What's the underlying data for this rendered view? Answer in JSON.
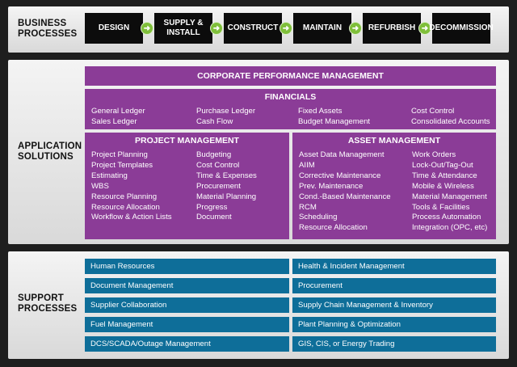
{
  "business": {
    "label": "BUSINESS\nPROCESSES",
    "steps": [
      "DESIGN",
      "SUPPLY &\nINSTALL",
      "CONSTRUCT",
      "MAINTAIN",
      "REFURBISH",
      "DECOMMISSION"
    ]
  },
  "application": {
    "label": "APPLICATION\nSOLUTIONS",
    "corporate": "CORPORATE PERFORMANCE MANAGEMENT",
    "financials": {
      "title": "FINANCIALS",
      "columns": [
        [
          "General Ledger",
          "Sales Ledger"
        ],
        [
          "Purchase Ledger",
          "Cash Flow"
        ],
        [
          "Fixed Assets",
          "Budget Management"
        ],
        [
          "Cost Control",
          "Consolidated Accounts"
        ]
      ]
    },
    "project": {
      "title": "PROJECT MANAGEMENT",
      "columns": [
        [
          "Project Planning",
          "Project Templates",
          "Estimating",
          "WBS",
          "Resource Planning",
          "Resource Allocation",
          "Workflow & Action Lists"
        ],
        [
          "Budgeting",
          "Cost Control",
          "Time & Expenses",
          "Procurement",
          "Material Planning",
          "Progress",
          "Document"
        ]
      ]
    },
    "asset": {
      "title": "ASSET MANAGEMENT",
      "columns": [
        [
          "Asset Data Management",
          "AIIM",
          "Corrective Maintenance",
          "Prev. Maintenance",
          "Cond.-Based Maintenance",
          "RCM",
          "Scheduling",
          "Resource Allocation"
        ],
        [
          "Work Orders",
          "Lock-Out/Tag-Out",
          "Time & Attendance",
          "Mobile & Wireless",
          "Material Management",
          "Tools & Facilities",
          "Process Automation",
          "Integration (OPC, etc)"
        ]
      ]
    }
  },
  "support": {
    "label": "SUPPORT\nPROCESSES",
    "left": [
      "Human Resources",
      "Document Management",
      "Supplier Collaboration",
      "Fuel Management",
      "DCS/SCADA/Outage Management"
    ],
    "right": [
      "Health & Incident Management",
      "Procurement",
      "Supply Chain Management & Inventory",
      "Plant Planning & Optimization",
      "GIS, CIS, or Energy Trading"
    ]
  },
  "colors": {
    "purple": "#8b3c97",
    "blue": "#0e6e99",
    "arrow": "#7fbf3a",
    "process": "#0c0c0c"
  }
}
